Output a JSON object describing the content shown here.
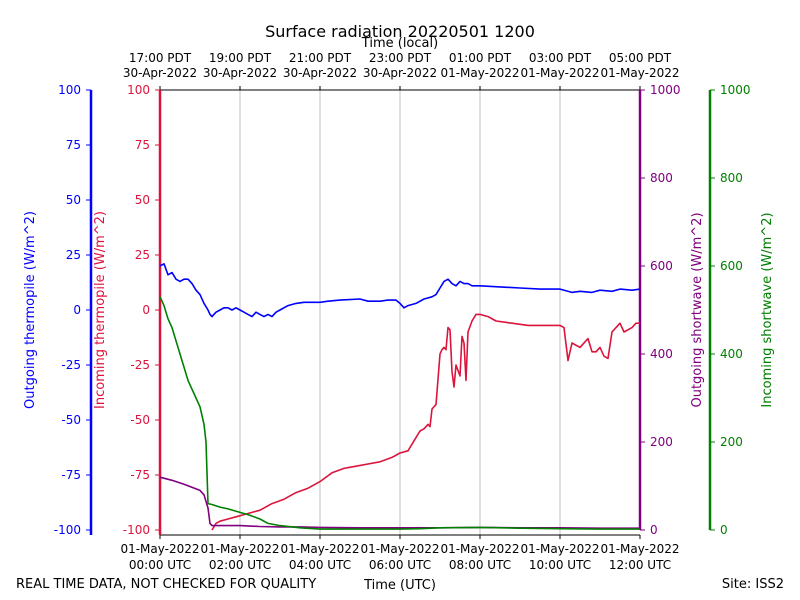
{
  "chart_data": {
    "type": "line",
    "title": "Surface radiation 20220501 1200",
    "top_axis_label": "Time (local)",
    "xlabel": "Time (UTC)",
    "footer_left": "REAL TIME DATA, NOT CHECKED FOR QUALITY",
    "footer_right": "Site: ISS2",
    "x_unit": "hours since 01-May-2022 00:00 UTC",
    "xlim": [
      0,
      12
    ],
    "x_ticks_utc": [
      {
        "x": 0,
        "line1": "01-May-2022",
        "line2": "00:00 UTC"
      },
      {
        "x": 2,
        "line1": "01-May-2022",
        "line2": "02:00 UTC"
      },
      {
        "x": 4,
        "line1": "01-May-2022",
        "line2": "04:00 UTC"
      },
      {
        "x": 6,
        "line1": "01-May-2022",
        "line2": "06:00 UTC"
      },
      {
        "x": 8,
        "line1": "01-May-2022",
        "line2": "08:00 UTC"
      },
      {
        "x": 10,
        "line1": "01-May-2022",
        "line2": "10:00 UTC"
      },
      {
        "x": 12,
        "line1": "01-May-2022",
        "line2": "12:00 UTC"
      }
    ],
    "x_ticks_local": [
      {
        "x": 0,
        "line1": "17:00 PDT",
        "line2": "30-Apr-2022"
      },
      {
        "x": 2,
        "line1": "19:00 PDT",
        "line2": "30-Apr-2022"
      },
      {
        "x": 4,
        "line1": "21:00 PDT",
        "line2": "30-Apr-2022"
      },
      {
        "x": 6,
        "line1": "23:00 PDT",
        "line2": "30-Apr-2022"
      },
      {
        "x": 8,
        "line1": "01:00 PDT",
        "line2": "01-May-2022"
      },
      {
        "x": 10,
        "line1": "03:00 PDT",
        "line2": "01-May-2022"
      },
      {
        "x": 12,
        "line1": "05:00 PDT",
        "line2": "01-May-2022"
      }
    ],
    "axes": [
      {
        "id": "out_thermo",
        "label": "Outgoing thermopile (W/m^2)",
        "color": "#0000ff",
        "ylim": [
          -100,
          100
        ],
        "ticks": [
          -100,
          -75,
          -50,
          -25,
          0,
          25,
          50,
          75,
          100
        ]
      },
      {
        "id": "in_thermo",
        "label": "Incoming thermopile (W/m^2)",
        "color": "#dc143c",
        "ylim": [
          -100,
          100
        ],
        "ticks": [
          -100,
          -75,
          -50,
          -25,
          0,
          25,
          50,
          75,
          100
        ]
      },
      {
        "id": "out_sw",
        "label": "Outgoing shortwave (W/m^2)",
        "color": "#800080",
        "ylim": [
          0,
          1000
        ],
        "ticks": [
          0,
          200,
          400,
          600,
          800,
          1000
        ]
      },
      {
        "id": "in_sw",
        "label": "Incoming shortwave (W/m^2)",
        "color": "#008000",
        "ylim": [
          0,
          1000
        ],
        "ticks": [
          0,
          200,
          400,
          600,
          800,
          1000
        ]
      }
    ],
    "grid": "vertical",
    "series": [
      {
        "axis": "out_thermo",
        "color": "#0000ff",
        "x": [
          0,
          0.1,
          0.2,
          0.3,
          0.4,
          0.5,
          0.6,
          0.7,
          0.8,
          0.9,
          1.0,
          1.1,
          1.2,
          1.25,
          1.3,
          1.4,
          1.5,
          1.6,
          1.7,
          1.8,
          1.9,
          2.0,
          2.1,
          2.2,
          2.3,
          2.4,
          2.5,
          2.6,
          2.7,
          2.8,
          2.9,
          3.0,
          3.2,
          3.4,
          3.6,
          3.8,
          4.0,
          4.2,
          4.5,
          5.0,
          5.2,
          5.5,
          5.7,
          5.9,
          6.0,
          6.1,
          6.2,
          6.4,
          6.6,
          6.8,
          6.9,
          7.0,
          7.1,
          7.2,
          7.3,
          7.4,
          7.5,
          7.6,
          7.7,
          7.8,
          8.0,
          8.5,
          9.0,
          9.5,
          10.0,
          10.3,
          10.5,
          10.8,
          11.0,
          11.3,
          11.5,
          11.8,
          12.0
        ],
        "y": [
          20,
          21,
          16,
          17,
          14,
          13,
          14,
          14,
          12,
          9,
          7,
          3,
          0,
          -2,
          -3,
          -1,
          0,
          1,
          1,
          0,
          1,
          0,
          -1,
          -2,
          -3,
          -1,
          -2,
          -3,
          -2,
          -3,
          -1,
          0,
          2,
          3,
          3.5,
          3.5,
          3.5,
          4,
          4.5,
          5,
          4,
          4,
          4.5,
          4.5,
          3,
          1,
          2,
          3,
          5,
          6,
          7,
          10,
          13,
          14,
          12,
          11,
          13,
          12,
          12,
          11,
          11,
          10.5,
          10,
          9.5,
          9.5,
          8,
          8.5,
          8,
          9,
          8.5,
          9.5,
          9,
          9.5
        ]
      },
      {
        "axis": "in_thermo",
        "color": "#dc143c",
        "x": [
          1.3,
          1.4,
          1.5,
          1.7,
          1.9,
          2.1,
          2.3,
          2.5,
          2.8,
          3.1,
          3.4,
          3.7,
          4.0,
          4.3,
          4.6,
          4.9,
          5.2,
          5.5,
          5.8,
          6.0,
          6.2,
          6.4,
          6.5,
          6.6,
          6.7,
          6.75,
          6.8,
          6.9,
          7.0,
          7.05,
          7.1,
          7.15,
          7.2,
          7.25,
          7.3,
          7.35,
          7.4,
          7.5,
          7.55,
          7.6,
          7.65,
          7.7,
          7.8,
          7.9,
          8.0,
          8.2,
          8.4,
          8.6,
          8.8,
          9.0,
          9.2,
          9.5,
          9.7,
          10.0,
          10.1,
          10.2,
          10.3,
          10.5,
          10.7,
          10.8,
          10.9,
          11.0,
          11.1,
          11.2,
          11.3,
          11.5,
          11.6,
          11.8,
          11.9,
          12.0
        ],
        "y": [
          -100,
          -97,
          -96,
          -95,
          -94,
          -93,
          -92,
          -91,
          -88,
          -86,
          -83,
          -81,
          -78,
          -74,
          -72,
          -71,
          -70,
          -69,
          -67,
          -65,
          -64,
          -58,
          -55,
          -54,
          -52,
          -53,
          -45,
          -43,
          -20,
          -18,
          -17,
          -18,
          -8,
          -9,
          -28,
          -35,
          -25,
          -30,
          -12,
          -15,
          -32,
          -10,
          -5,
          -2,
          -2,
          -3,
          -5,
          -5.5,
          -6,
          -6.5,
          -7,
          -7,
          -7,
          -7,
          -8,
          -23,
          -15,
          -17,
          -13,
          -19,
          -19,
          -17,
          -21,
          -22,
          -10,
          -6,
          -10,
          -8,
          -6,
          -6
        ]
      },
      {
        "axis": "out_sw",
        "color": "#800080",
        "x": [
          0,
          0.3,
          0.6,
          1.0,
          1.1,
          1.2,
          1.25,
          1.3,
          1.5,
          2.0,
          2.5,
          3.0,
          3.5,
          4.0,
          5.0,
          6.0,
          7.0,
          8.0,
          9.0,
          10.0,
          11.0,
          12.0
        ],
        "y": [
          120,
          113,
          104,
          90,
          80,
          50,
          15,
          10,
          10,
          10,
          8,
          7,
          7,
          6,
          5,
          5,
          5,
          6,
          5,
          5,
          4,
          4
        ]
      },
      {
        "axis": "in_sw",
        "color": "#008000",
        "x": [
          0,
          0.1,
          0.2,
          0.3,
          0.4,
          0.5,
          0.6,
          0.7,
          0.8,
          0.9,
          1.0,
          1.05,
          1.1,
          1.15,
          1.2,
          1.3,
          1.5,
          1.7,
          2.0,
          2.2,
          2.5,
          2.7,
          3.0,
          3.5,
          4.0,
          5.0,
          6.0,
          6.5,
          7.0,
          8.0,
          9.0,
          10.0,
          11.0,
          12.0
        ],
        "y": [
          530,
          510,
          480,
          460,
          430,
          400,
          370,
          340,
          320,
          300,
          280,
          260,
          240,
          200,
          60,
          58,
          52,
          48,
          40,
          35,
          25,
          15,
          10,
          5,
          2,
          2,
          2,
          3,
          5,
          6,
          4,
          3,
          2,
          2
        ]
      }
    ]
  }
}
